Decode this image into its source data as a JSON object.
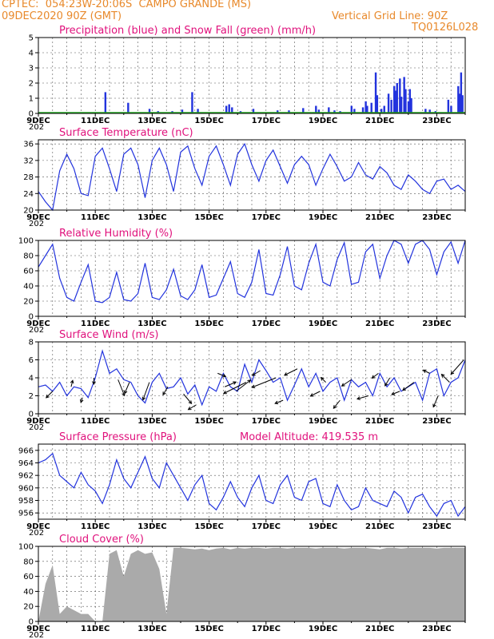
{
  "header": {
    "line1": "CPTEC:  054:23W-20:06S  CAMPO GRANDE (MS)",
    "line2_left": "09DEC2020 90Z (GMT)",
    "line2_right": "Vertical Grid Line: 90Z",
    "code": "TQ0126L028"
  },
  "x_labels": [
    "9DEC",
    "11DEC",
    "13DEC",
    "15DEC",
    "17DEC",
    "19DEC",
    "21DEC",
    "23DEC"
  ],
  "x_label_prefix": "202",
  "colors": {
    "series": "#2233dd",
    "snow": "#22aa22",
    "cloud": "#aaaaaa",
    "title": "#e0117c",
    "header": "#e8892b"
  },
  "chart_data": [
    {
      "id": "precip",
      "type": "bar",
      "title": "Precipitation (blue) and Snow Fall (green) (mm/h)",
      "ylim": [
        0,
        5
      ],
      "yticks": [
        0,
        1,
        2,
        3,
        4,
        5
      ],
      "x_range_days": [
        9,
        24
      ],
      "values": [
        {
          "t": 11.35,
          "v": 1.4
        },
        {
          "t": 12.15,
          "v": 0.7
        },
        {
          "t": 12.9,
          "v": 0.3
        },
        {
          "t": 13.2,
          "v": 0.15
        },
        {
          "t": 13.7,
          "v": 0.15
        },
        {
          "t": 14.05,
          "v": 0.25
        },
        {
          "t": 14.4,
          "v": 1.4
        },
        {
          "t": 14.6,
          "v": 0.3
        },
        {
          "t": 15.6,
          "v": 0.5
        },
        {
          "t": 15.7,
          "v": 0.6
        },
        {
          "t": 15.8,
          "v": 0.4
        },
        {
          "t": 16.1,
          "v": 0.15
        },
        {
          "t": 16.55,
          "v": 0.3
        },
        {
          "t": 17.4,
          "v": 0.2
        },
        {
          "t": 17.8,
          "v": 0.2
        },
        {
          "t": 18.3,
          "v": 0.35
        },
        {
          "t": 18.75,
          "v": 0.5
        },
        {
          "t": 18.85,
          "v": 0.25
        },
        {
          "t": 19.2,
          "v": 0.4
        },
        {
          "t": 19.4,
          "v": 0.2
        },
        {
          "t": 19.6,
          "v": 0.15
        },
        {
          "t": 20.0,
          "v": 0.5
        },
        {
          "t": 20.1,
          "v": 0.3
        },
        {
          "t": 20.4,
          "v": 0.4
        },
        {
          "t": 20.5,
          "v": 0.8
        },
        {
          "t": 20.55,
          "v": 0.5
        },
        {
          "t": 20.7,
          "v": 0.7
        },
        {
          "t": 20.85,
          "v": 2.7
        },
        {
          "t": 20.9,
          "v": 1.2
        },
        {
          "t": 21.05,
          "v": 0.3
        },
        {
          "t": 21.15,
          "v": 0.5
        },
        {
          "t": 21.3,
          "v": 1.3
        },
        {
          "t": 21.4,
          "v": 0.9
        },
        {
          "t": 21.5,
          "v": 1.8
        },
        {
          "t": 21.55,
          "v": 1.5
        },
        {
          "t": 21.6,
          "v": 2.0
        },
        {
          "t": 21.7,
          "v": 2.3
        },
        {
          "t": 21.75,
          "v": 1.1
        },
        {
          "t": 21.85,
          "v": 2.4
        },
        {
          "t": 21.9,
          "v": 1.6
        },
        {
          "t": 22.0,
          "v": 0.8
        },
        {
          "t": 22.05,
          "v": 1.6
        },
        {
          "t": 22.1,
          "v": 1.0
        },
        {
          "t": 22.6,
          "v": 0.3
        },
        {
          "t": 22.75,
          "v": 0.25
        },
        {
          "t": 22.95,
          "v": 0.15
        },
        {
          "t": 23.4,
          "v": 0.9
        },
        {
          "t": 23.5,
          "v": 0.5
        },
        {
          "t": 23.75,
          "v": 1.8
        },
        {
          "t": 23.8,
          "v": 1.3
        },
        {
          "t": 23.85,
          "v": 2.7
        },
        {
          "t": 23.9,
          "v": 1.2
        }
      ],
      "snow_values": 0
    },
    {
      "id": "temp",
      "type": "line",
      "title": "Surface Temperature (nC)",
      "ylim": [
        20,
        37
      ],
      "yticks": [
        20,
        24,
        28,
        32,
        36
      ],
      "x_range_days": [
        9,
        24
      ],
      "x": [
        9.0,
        9.25,
        9.5,
        9.75,
        10.0,
        10.25,
        10.5,
        10.75,
        11.0,
        11.25,
        11.5,
        11.75,
        12.0,
        12.25,
        12.5,
        12.75,
        13.0,
        13.25,
        13.5,
        13.75,
        14.0,
        14.25,
        14.5,
        14.75,
        15.0,
        15.25,
        15.5,
        15.75,
        16.0,
        16.25,
        16.5,
        16.75,
        17.0,
        17.25,
        17.5,
        17.75,
        18.0,
        18.25,
        18.5,
        18.75,
        19.0,
        19.25,
        19.5,
        19.75,
        20.0,
        20.25,
        20.5,
        20.75,
        21.0,
        21.25,
        21.5,
        21.75,
        22.0,
        22.25,
        22.5,
        22.75,
        23.0,
        23.25,
        23.5,
        23.75,
        24.0
      ],
      "values": [
        24.5,
        22.0,
        20.0,
        29.5,
        33.5,
        30.0,
        24.0,
        23.5,
        33.0,
        35.0,
        30.0,
        24.5,
        33.5,
        35.0,
        31.0,
        23.0,
        32.0,
        35.0,
        31.0,
        24.5,
        34.0,
        35.5,
        30.0,
        26.0,
        33.0,
        35.5,
        31.0,
        26.0,
        33.5,
        36.0,
        31.0,
        27.0,
        32.0,
        34.5,
        30.5,
        26.5,
        31.0,
        33.0,
        31.0,
        26.0,
        30.0,
        33.5,
        30.5,
        27.0,
        28.0,
        31.5,
        28.5,
        27.5,
        30.5,
        29.0,
        26.0,
        25.0,
        28.5,
        27.0,
        25.0,
        24.0,
        27.0,
        27.5,
        25.0,
        26.0,
        24.5
      ]
    },
    {
      "id": "rh",
      "type": "line",
      "title": "Relative Humidity (%)",
      "ylim": [
        0,
        100
      ],
      "yticks": [
        0,
        20,
        40,
        60,
        80,
        100
      ],
      "x_range_days": [
        9,
        24
      ],
      "x": [
        9.0,
        9.25,
        9.5,
        9.75,
        10.0,
        10.25,
        10.5,
        10.75,
        11.0,
        11.25,
        11.5,
        11.75,
        12.0,
        12.25,
        12.5,
        12.75,
        13.0,
        13.25,
        13.5,
        13.75,
        14.0,
        14.25,
        14.5,
        14.75,
        15.0,
        15.25,
        15.5,
        15.75,
        16.0,
        16.25,
        16.5,
        16.75,
        17.0,
        17.25,
        17.5,
        17.75,
        18.0,
        18.25,
        18.5,
        18.75,
        19.0,
        19.25,
        19.5,
        19.75,
        20.0,
        20.25,
        20.5,
        20.75,
        21.0,
        21.25,
        21.5,
        21.75,
        22.0,
        22.25,
        22.5,
        22.75,
        23.0,
        23.25,
        23.5,
        23.75,
        24.0
      ],
      "values": [
        65,
        80,
        95,
        50,
        25,
        20,
        45,
        68,
        20,
        18,
        25,
        58,
        22,
        20,
        30,
        70,
        25,
        22,
        35,
        62,
        27,
        22,
        35,
        68,
        25,
        28,
        50,
        72,
        30,
        25,
        45,
        88,
        30,
        28,
        55,
        92,
        40,
        35,
        70,
        95,
        45,
        40,
        75,
        97,
        42,
        45,
        85,
        95,
        50,
        80,
        100,
        95,
        70,
        95,
        100,
        88,
        55,
        85,
        98,
        70,
        100
      ]
    },
    {
      "id": "wind",
      "type": "line",
      "title": "Surface Wind (m/s)",
      "ylim": [
        0,
        8
      ],
      "yticks": [
        0,
        2,
        4,
        6,
        8
      ],
      "x_range_days": [
        9,
        24
      ],
      "x": [
        9.0,
        9.25,
        9.5,
        9.75,
        10.0,
        10.25,
        10.5,
        10.75,
        11.0,
        11.25,
        11.5,
        11.75,
        12.0,
        12.25,
        12.5,
        12.75,
        13.0,
        13.25,
        13.5,
        13.75,
        14.0,
        14.25,
        14.5,
        14.75,
        15.0,
        15.25,
        15.5,
        15.75,
        16.0,
        16.25,
        16.5,
        16.75,
        17.0,
        17.25,
        17.5,
        17.75,
        18.0,
        18.25,
        18.5,
        18.75,
        19.0,
        19.25,
        19.5,
        19.75,
        20.0,
        20.25,
        20.5,
        20.75,
        21.0,
        21.25,
        21.5,
        21.75,
        22.0,
        22.25,
        22.5,
        22.75,
        23.0,
        23.25,
        23.5,
        23.75,
        24.0
      ],
      "values": [
        3.0,
        3.2,
        2.5,
        3.5,
        2.0,
        3.0,
        2.8,
        1.8,
        4.0,
        7.0,
        4.5,
        5.0,
        3.8,
        3.5,
        2.0,
        1.2,
        3.5,
        4.5,
        2.8,
        3.0,
        4.0,
        2.2,
        3.2,
        1.0,
        3.0,
        2.5,
        4.5,
        3.0,
        2.5,
        5.5,
        3.5,
        6.0,
        4.8,
        3.5,
        4.0,
        1.5,
        3.2,
        5.0,
        3.0,
        4.5,
        2.5,
        3.5,
        4.0,
        1.5,
        3.8,
        3.0,
        3.5,
        2.0,
        4.5,
        3.0,
        4.0,
        2.5,
        3.0,
        3.5,
        1.5,
        4.5,
        5.0,
        2.0,
        3.5,
        4.0,
        6.0
      ],
      "arrows": [
        {
          "t": 9.5,
          "dx": -8,
          "dy": 8
        },
        {
          "t": 10.15,
          "dx": 2,
          "dy": -8
        },
        {
          "t": 10.55,
          "dx": -2,
          "dy": 6
        },
        {
          "t": 10.95,
          "dx": 0,
          "dy": 8
        },
        {
          "t": 11.8,
          "dx": 8,
          "dy": 20
        },
        {
          "t": 12.2,
          "dx": -6,
          "dy": 14
        },
        {
          "t": 12.9,
          "dx": -8,
          "dy": 22
        },
        {
          "t": 13.55,
          "dx": -6,
          "dy": 10
        },
        {
          "t": 14.1,
          "dx": 10,
          "dy": 12
        },
        {
          "t": 14.55,
          "dx": -10,
          "dy": 6
        },
        {
          "t": 15.3,
          "dx": 10,
          "dy": 4
        },
        {
          "t": 15.55,
          "dx": 14,
          "dy": -6
        },
        {
          "t": 15.95,
          "dx": 18,
          "dy": -14
        },
        {
          "t": 16.3,
          "dx": -28,
          "dy": 14
        },
        {
          "t": 16.8,
          "dx": -10,
          "dy": 6
        },
        {
          "t": 17.35,
          "dx": -30,
          "dy": 12
        },
        {
          "t": 17.6,
          "dx": -10,
          "dy": 4
        },
        {
          "t": 18.1,
          "dx": -16,
          "dy": 8
        },
        {
          "t": 18.9,
          "dx": -12,
          "dy": 6
        },
        {
          "t": 19.1,
          "dx": -6,
          "dy": -6
        },
        {
          "t": 19.6,
          "dx": -8,
          "dy": 10
        },
        {
          "t": 20.0,
          "dx": -12,
          "dy": 8
        },
        {
          "t": 20.6,
          "dx": -14,
          "dy": 4
        },
        {
          "t": 20.95,
          "dx": -8,
          "dy": 6
        },
        {
          "t": 21.35,
          "dx": -6,
          "dy": 10
        },
        {
          "t": 21.7,
          "dx": -10,
          "dy": 4
        },
        {
          "t": 22.2,
          "dx": -14,
          "dy": 10
        },
        {
          "t": 22.75,
          "dx": -8,
          "dy": -4
        },
        {
          "t": 23.05,
          "dx": -6,
          "dy": 14
        },
        {
          "t": 23.45,
          "dx": -10,
          "dy": -10
        },
        {
          "t": 23.95,
          "dx": -16,
          "dy": 18
        }
      ]
    },
    {
      "id": "pressure",
      "type": "line",
      "title": "Surface Pressure (hPa)",
      "subtitle": "Model Altitude: 419.535  m",
      "ylim": [
        955,
        967
      ],
      "yticks": [
        956,
        958,
        960,
        962,
        964,
        966
      ],
      "x_range_days": [
        9,
        24
      ],
      "x": [
        9.0,
        9.25,
        9.5,
        9.75,
        10.0,
        10.25,
        10.5,
        10.75,
        11.0,
        11.25,
        11.5,
        11.75,
        12.0,
        12.25,
        12.5,
        12.75,
        13.0,
        13.25,
        13.5,
        13.75,
        14.0,
        14.25,
        14.5,
        14.75,
        15.0,
        15.25,
        15.5,
        15.75,
        16.0,
        16.25,
        16.5,
        16.75,
        17.0,
        17.25,
        17.5,
        17.75,
        18.0,
        18.25,
        18.5,
        18.75,
        19.0,
        19.25,
        19.5,
        19.75,
        20.0,
        20.25,
        20.5,
        20.75,
        21.0,
        21.25,
        21.5,
        21.75,
        22.0,
        22.25,
        22.5,
        22.75,
        23.0,
        23.25,
        23.5,
        23.75,
        24.0
      ],
      "values": [
        964.0,
        964.5,
        965.5,
        962.0,
        961.0,
        960.0,
        962.5,
        960.5,
        959.5,
        957.5,
        960.5,
        964.5,
        961.5,
        960.0,
        962.5,
        965.0,
        961.5,
        960.0,
        964.0,
        962.0,
        960.0,
        958.0,
        960.5,
        962.0,
        957.5,
        956.5,
        958.5,
        961.0,
        958.5,
        957.0,
        960.0,
        962.0,
        958.0,
        957.5,
        960.5,
        962.0,
        958.5,
        958.0,
        961.0,
        961.5,
        957.5,
        957.0,
        960.5,
        958.0,
        956.5,
        957.0,
        960.0,
        958.0,
        957.5,
        957.0,
        959.5,
        958.5,
        956.0,
        958.5,
        959.0,
        957.0,
        955.5,
        957.5,
        958.0,
        955.5,
        957.0
      ]
    },
    {
      "id": "cloud",
      "type": "area",
      "title": "Cloud Cover (%)",
      "ylim": [
        0,
        100
      ],
      "yticks": [
        0,
        20,
        40,
        60,
        80,
        100
      ],
      "x_range_days": [
        9,
        24
      ],
      "x": [
        9.0,
        9.25,
        9.5,
        9.75,
        10.0,
        10.25,
        10.5,
        10.75,
        11.0,
        11.25,
        11.5,
        11.75,
        12.0,
        12.25,
        12.5,
        12.75,
        13.0,
        13.25,
        13.5,
        13.75,
        14.0,
        14.25,
        14.5,
        14.75,
        15.0,
        15.25,
        15.5,
        15.75,
        16.0,
        16.25,
        16.5,
        16.75,
        17.0,
        17.25,
        17.5,
        17.75,
        18.0,
        18.25,
        18.5,
        18.75,
        19.0,
        19.25,
        19.5,
        19.75,
        20.0,
        20.25,
        20.5,
        20.75,
        21.0,
        21.25,
        21.5,
        21.75,
        22.0,
        22.25,
        22.5,
        22.75,
        23.0,
        23.25,
        23.5,
        23.75,
        24.0
      ],
      "values": [
        0,
        50,
        75,
        10,
        20,
        15,
        10,
        10,
        0,
        0,
        90,
        95,
        60,
        90,
        95,
        90,
        92,
        70,
        10,
        98,
        98,
        97,
        96,
        97,
        95,
        97,
        98,
        96,
        98,
        97,
        98,
        98,
        97,
        98,
        98,
        97,
        98,
        98,
        98,
        97,
        98,
        98,
        98,
        97,
        98,
        98,
        98,
        97,
        96,
        98,
        98,
        97,
        98,
        98,
        98,
        98,
        97,
        98,
        98,
        98,
        98
      ]
    }
  ]
}
